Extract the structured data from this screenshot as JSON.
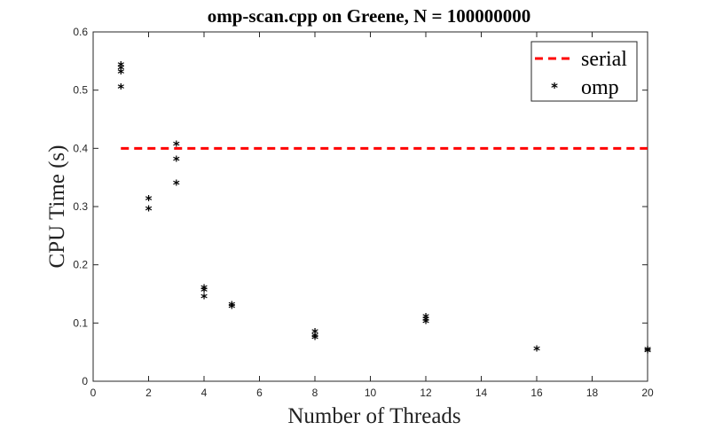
{
  "chart_data": {
    "type": "scatter",
    "title": "omp-scan.cpp on Greene,   N = 100000000",
    "xlabel": "Number of Threads",
    "ylabel": "CPU Time (s)",
    "xlim": [
      0,
      20
    ],
    "ylim": [
      0,
      0.6
    ],
    "xticks": [
      "0",
      "2",
      "4",
      "6",
      "8",
      "10",
      "12",
      "14",
      "16",
      "18",
      "20"
    ],
    "yticks": [
      "0",
      "0.1",
      "0.2",
      "0.3",
      "0.4",
      "0.5",
      "0.6"
    ],
    "grid": false,
    "legend_position": "top-right",
    "series": [
      {
        "name": "serial",
        "style": "dashed-line",
        "color": "#ff0000",
        "x": [
          1,
          20
        ],
        "y": [
          0.4,
          0.4
        ]
      },
      {
        "name": "omp",
        "style": "asterisk-markers",
        "color": "#000000",
        "x": [
          1,
          1,
          1,
          1,
          2,
          2,
          3,
          3,
          3,
          4,
          4,
          4,
          5,
          5,
          8,
          8,
          8,
          12,
          12,
          12,
          16,
          20,
          20
        ],
        "y": [
          0.545,
          0.54,
          0.533,
          0.507,
          0.315,
          0.298,
          0.409,
          0.383,
          0.342,
          0.162,
          0.158,
          0.147,
          0.133,
          0.13,
          0.087,
          0.08,
          0.077,
          0.113,
          0.108,
          0.104,
          0.057,
          0.056,
          0.054
        ]
      }
    ]
  }
}
